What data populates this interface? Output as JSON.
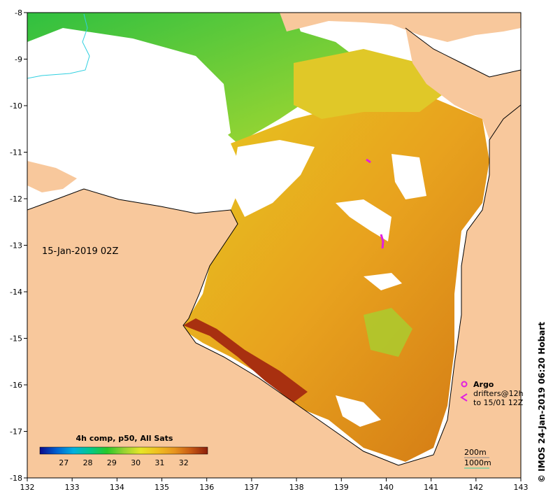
{
  "map": {
    "date_label": "15-Jan-2019 02Z",
    "credit": "© IMOS 24-Jan-2019 06:20 Hobart",
    "x_ticks": [
      "132",
      "133",
      "134",
      "135",
      "136",
      "137",
      "138",
      "139",
      "140",
      "141",
      "142",
      "143"
    ],
    "y_ticks": [
      "-8",
      "-9",
      "-10",
      "-11",
      "-12",
      "-13",
      "-14",
      "-15",
      "-16",
      "-17",
      "-18"
    ],
    "x_range": [
      132,
      143
    ],
    "y_range": [
      -18,
      -8
    ],
    "colorbar": {
      "title": "4h comp, p50, All Sats",
      "ticks": [
        "27",
        "28",
        "29",
        "30",
        "31",
        "32"
      ],
      "range": [
        26,
        33
      ],
      "colors": [
        "#0a0a8c",
        "#0060d0",
        "#00b0e0",
        "#00c88c",
        "#28c828",
        "#96d232",
        "#e6e628",
        "#f0c020",
        "#e8961e",
        "#c85a14",
        "#8c1e0a"
      ]
    },
    "legend": {
      "argo_label": "Argo",
      "drifters_label": "drifters@12h",
      "drifters_period": "to 15/01 12Z",
      "argo_color": "#e020e0",
      "drifter_color": "#e020e0"
    },
    "contours": {
      "label_200m": "200m",
      "label_1000m": "1000m",
      "color_200m": "#888888",
      "color_1000m": "#30d0a0"
    },
    "land_color": "#f8c89c",
    "no_data_color": "#ffffff"
  }
}
